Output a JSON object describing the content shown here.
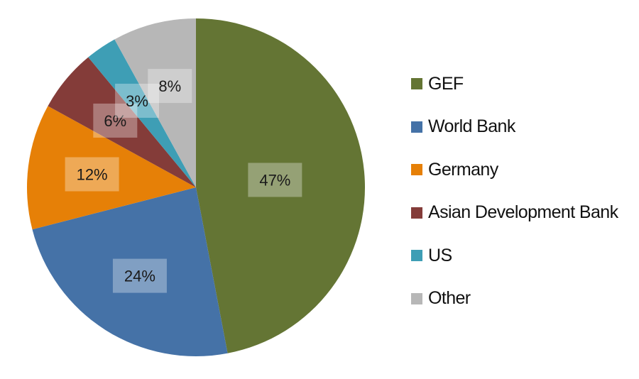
{
  "chart_data": {
    "type": "pie",
    "title": "",
    "start_angle_deg": 0,
    "direction": "clockwise",
    "slices": [
      {
        "label": "GEF",
        "value": 47,
        "data_label": "47%",
        "color": "#647534"
      },
      {
        "label": "World Bank",
        "value": 24,
        "data_label": "24%",
        "color": "#4572a7"
      },
      {
        "label": "Germany",
        "value": 12,
        "data_label": "12%",
        "color": "#e68007"
      },
      {
        "label": "Asian Development Bank",
        "value": 6,
        "data_label": "6%",
        "color": "#843c39"
      },
      {
        "label": "US",
        "value": 3,
        "data_label": "3%",
        "color": "#3e9eb5"
      },
      {
        "label": "Other",
        "value": 8,
        "data_label": "8%",
        "color": "#b7b7b7"
      }
    ],
    "legend_position": "right"
  }
}
